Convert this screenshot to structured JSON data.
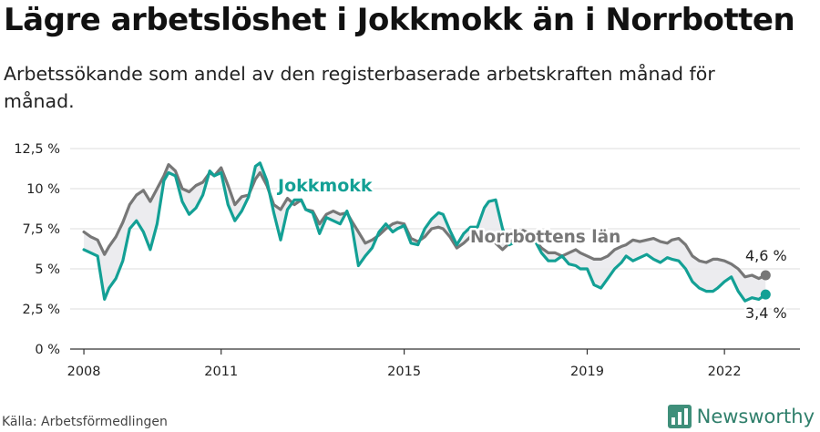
{
  "header": {
    "title": "Lägre arbetslöshet i Jokkmokk än i Norrbotten",
    "subtitle": "Arbetssökande som andel av den registerbaserade arbetskraften månad för månad."
  },
  "footer": {
    "source": "Källa: Arbetsförmedlingen",
    "brand": "Newsworthy"
  },
  "colors": {
    "jokkmokk": "#13a095",
    "norrbotten": "#777777",
    "fill": "#e9e9ec",
    "grid": "#dddddd"
  },
  "chart_data": {
    "type": "line",
    "title": "Lägre arbetslöshet i Jokkmokk än i Norrbotten",
    "xlabel": "",
    "ylabel": "",
    "ylim": [
      0,
      12.5
    ],
    "xlim": [
      2007.7,
      2023.65
    ],
    "yticks": [
      0,
      2.5,
      5,
      7.5,
      10,
      12.5
    ],
    "ytick_labels": [
      "0 %",
      "2,5 %",
      "5 %",
      "7,5 %",
      "10 %",
      "12,5 %"
    ],
    "xticks": [
      2008,
      2011,
      2015,
      2019,
      2022
    ],
    "xtick_labels": [
      "2008",
      "2011",
      "2015",
      "2019",
      "2022"
    ],
    "series": [
      {
        "name": "Norrbottens län",
        "label": "Norrbottens län",
        "end_label": "4,6 %",
        "x": [
          2008.0,
          2008.15,
          2008.3,
          2008.45,
          2008.55,
          2008.7,
          2008.85,
          2009.0,
          2009.15,
          2009.3,
          2009.45,
          2009.6,
          2009.75,
          2009.85,
          2010.0,
          2010.15,
          2010.3,
          2010.45,
          2010.6,
          2010.75,
          2010.85,
          2011.0,
          2011.15,
          2011.3,
          2011.45,
          2011.6,
          2011.75,
          2011.85,
          2012.0,
          2012.15,
          2012.3,
          2012.45,
          2012.6,
          2012.75,
          2012.85,
          2013.0,
          2013.15,
          2013.3,
          2013.45,
          2013.6,
          2013.75,
          2013.85,
          2014.0,
          2014.15,
          2014.3,
          2014.45,
          2014.6,
          2014.75,
          2014.85,
          2015.0,
          2015.15,
          2015.3,
          2015.45,
          2015.6,
          2015.75,
          2015.85,
          2016.0,
          2016.15,
          2016.3,
          2016.45,
          2016.6,
          2016.75,
          2016.85,
          2017.0,
          2017.15,
          2017.3,
          2017.45,
          2017.6,
          2017.75,
          2017.85,
          2018.0,
          2018.15,
          2018.3,
          2018.45,
          2018.6,
          2018.75,
          2018.85,
          2019.0,
          2019.15,
          2019.3,
          2019.45,
          2019.6,
          2019.75,
          2019.85,
          2020.0,
          2020.15,
          2020.3,
          2020.45,
          2020.6,
          2020.75,
          2020.85,
          2021.0,
          2021.15,
          2021.3,
          2021.45,
          2021.6,
          2021.75,
          2021.85,
          2022.0,
          2022.15,
          2022.3,
          2022.45,
          2022.6,
          2022.75,
          2022.9
        ],
        "values": [
          7.3,
          7.0,
          6.8,
          5.9,
          6.4,
          7.0,
          7.9,
          9.0,
          9.6,
          9.9,
          9.2,
          10.0,
          10.8,
          11.5,
          11.1,
          10.0,
          9.8,
          10.2,
          10.4,
          11.0,
          10.8,
          11.3,
          10.2,
          9.0,
          9.5,
          9.6,
          10.6,
          11.0,
          10.2,
          9.0,
          8.7,
          9.4,
          9.0,
          9.3,
          8.7,
          8.6,
          7.8,
          8.4,
          8.6,
          8.4,
          8.5,
          8.0,
          7.3,
          6.6,
          6.8,
          7.1,
          7.5,
          7.8,
          7.9,
          7.8,
          6.9,
          6.7,
          7.0,
          7.5,
          7.6,
          7.5,
          7.0,
          6.3,
          6.6,
          7.0,
          7.1,
          7.2,
          7.0,
          6.6,
          6.2,
          6.6,
          7.0,
          7.4,
          7.2,
          6.8,
          6.3,
          6.0,
          6.0,
          5.8,
          6.0,
          6.2,
          6.0,
          5.8,
          5.6,
          5.6,
          5.8,
          6.2,
          6.4,
          6.5,
          6.8,
          6.7,
          6.8,
          6.9,
          6.7,
          6.6,
          6.8,
          6.9,
          6.5,
          5.8,
          5.5,
          5.4,
          5.6,
          5.6,
          5.5,
          5.3,
          5.0,
          4.5,
          4.6,
          4.4,
          4.6
        ]
      },
      {
        "name": "Jokkmokk",
        "label": "Jokkmokk",
        "end_label": "3,4 %",
        "x": [
          2008.0,
          2008.15,
          2008.3,
          2008.45,
          2008.55,
          2008.7,
          2008.85,
          2009.0,
          2009.15,
          2009.3,
          2009.45,
          2009.6,
          2009.75,
          2009.85,
          2010.0,
          2010.15,
          2010.3,
          2010.45,
          2010.6,
          2010.75,
          2010.85,
          2011.0,
          2011.15,
          2011.3,
          2011.45,
          2011.6,
          2011.75,
          2011.85,
          2012.0,
          2012.15,
          2012.3,
          2012.45,
          2012.6,
          2012.75,
          2012.85,
          2013.0,
          2013.15,
          2013.3,
          2013.45,
          2013.6,
          2013.75,
          2013.85,
          2014.0,
          2014.15,
          2014.3,
          2014.45,
          2014.6,
          2014.75,
          2014.85,
          2015.0,
          2015.15,
          2015.3,
          2015.45,
          2015.6,
          2015.75,
          2015.85,
          2016.0,
          2016.15,
          2016.3,
          2016.45,
          2016.6,
          2016.75,
          2016.85,
          2017.0,
          2017.15,
          2017.3,
          2017.45,
          2017.6,
          2017.75,
          2017.85,
          2018.0,
          2018.15,
          2018.3,
          2018.45,
          2018.6,
          2018.75,
          2018.85,
          2019.0,
          2019.15,
          2019.3,
          2019.45,
          2019.6,
          2019.75,
          2019.85,
          2020.0,
          2020.15,
          2020.3,
          2020.45,
          2020.6,
          2020.75,
          2020.85,
          2021.0,
          2021.15,
          2021.3,
          2021.45,
          2021.6,
          2021.75,
          2021.85,
          2022.0,
          2022.15,
          2022.3,
          2022.45,
          2022.6,
          2022.75,
          2022.9
        ],
        "values": [
          6.2,
          6.0,
          5.8,
          3.1,
          3.8,
          4.4,
          5.5,
          7.5,
          8.0,
          7.3,
          6.2,
          7.8,
          10.5,
          11.0,
          10.8,
          9.2,
          8.4,
          8.8,
          9.6,
          11.1,
          10.8,
          11.0,
          9.0,
          8.0,
          8.6,
          9.5,
          11.4,
          11.6,
          10.5,
          8.5,
          6.8,
          8.7,
          9.3,
          9.3,
          8.7,
          8.5,
          7.2,
          8.2,
          8.0,
          7.8,
          8.6,
          7.8,
          5.2,
          5.8,
          6.3,
          7.3,
          7.8,
          7.3,
          7.5,
          7.7,
          6.6,
          6.5,
          7.5,
          8.1,
          8.5,
          8.4,
          7.4,
          6.5,
          7.2,
          7.6,
          7.6,
          8.8,
          9.2,
          9.3,
          7.5,
          6.5,
          6.7,
          7.1,
          7.2,
          6.8,
          6.0,
          5.5,
          5.5,
          5.8,
          5.3,
          5.2,
          5.0,
          5.0,
          4.0,
          3.8,
          4.4,
          5.0,
          5.4,
          5.8,
          5.5,
          5.7,
          5.9,
          5.6,
          5.4,
          5.7,
          5.6,
          5.5,
          5.0,
          4.2,
          3.8,
          3.6,
          3.6,
          3.8,
          4.2,
          4.5,
          3.6,
          3.0,
          3.2,
          3.1,
          3.4
        ]
      }
    ]
  }
}
